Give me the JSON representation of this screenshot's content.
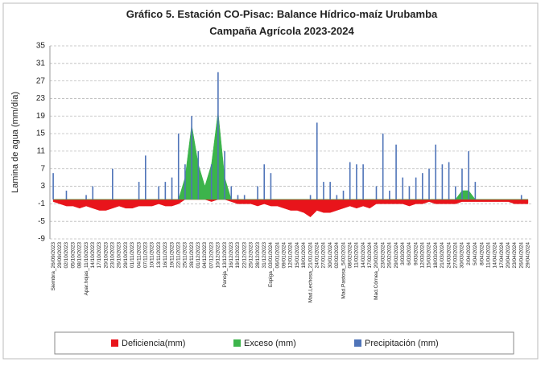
{
  "chart_data": {
    "type": "combo",
    "title": "Gráfico 5. Estación CO-Pisac: Balance Hídrico-maíz Urubamba",
    "subtitle": "Campaña Agrícola 2023-2024",
    "y_label": "Lamina de agua (mm/día)",
    "ylim": [
      -9,
      35
    ],
    "yticks": [
      -9,
      -5,
      -1,
      3,
      7,
      11,
      15,
      19,
      23,
      27,
      31,
      35
    ],
    "grid": true,
    "categories": [
      "Siembra_26/09/2023",
      "29/09/2023",
      "02/10/2023",
      "05/10/2023",
      "08/10/2023",
      "Apar.hojas_11/10/2023",
      "14/10/2023",
      "17/10/2023",
      "20/10/2023",
      "23/10/2023",
      "26/10/2023",
      "29/10/2023",
      "01/11/2023",
      "04/11/2023",
      "07/11/2023",
      "10/11/2023",
      "13/11/2023",
      "16/11/2023",
      "19/11/2023",
      "22/11/2023",
      "25/11/2023",
      "28/11/2023",
      "01/12/2023",
      "04/12/2023",
      "07/12/2023",
      "10/12/2023",
      "Panoja_13/12/2023",
      "16/12/2023",
      "19/12/2023",
      "22/12/2023",
      "25/12/2023",
      "28/12/2023",
      "31/12/2023",
      "Espiga_03/01/2024",
      "06/01/2024",
      "09/01/2024",
      "12/01/2024",
      "15/01/2024",
      "18/01/2024",
      "Mad.Lechosa_21/01/2024",
      "24/01/2024",
      "27/01/2024",
      "30/01/2024",
      "02/02/2024",
      "Mad.Pastosa_5/02/2024",
      "08/02/2024",
      "11/02/2024",
      "14/02/2024",
      "17/02/2024",
      "Mad.Córnea_20/02/2024",
      "23/02/2024",
      "26/02/2024",
      "29/02/2024",
      "3/03/2024",
      "6/03/2024",
      "9/03/2024",
      "12/03/2024",
      "15/03/2024",
      "18/03/2024",
      "21/03/2024",
      "24/03/2024",
      "27/03/2024",
      "30/03/2024",
      "2/04/2024",
      "5/04/2024",
      "8/04/2024",
      "11/04/2024",
      "14/04/2024",
      "17/04/2024",
      "20/04/2024",
      "23/04/2024",
      "26/04/2024",
      "29/04/2024"
    ],
    "series": [
      {
        "name": "Deficiencia(mm)",
        "color": "#e8141b",
        "type": "area",
        "values": [
          -0.5,
          -1,
          -1.5,
          -1.5,
          -2,
          -1.5,
          -2,
          -2.5,
          -2.5,
          -2,
          -1.5,
          -2,
          -2,
          -1.5,
          -1.5,
          -1.5,
          -1,
          -1.5,
          -1.5,
          -1,
          0,
          0,
          0,
          0,
          -0.5,
          0,
          0,
          -0.5,
          -1,
          -1,
          -1,
          -1.5,
          -1,
          -1.5,
          -1.5,
          -2,
          -2.5,
          -2.5,
          -3,
          -4,
          -2.5,
          -3,
          -3,
          -2.5,
          -2,
          -1.5,
          -2,
          -1.5,
          -2,
          -1,
          -1,
          -1,
          -1,
          -1,
          -1.5,
          -1,
          -1,
          -0.5,
          -1,
          -1,
          -1,
          -1,
          -0.5,
          -0.5,
          -0.5,
          -0.5,
          -0.5,
          -0.5,
          -0.5,
          -0.5,
          -1,
          -1,
          -1
        ]
      },
      {
        "name": "Exceso (mm)",
        "color": "#3cb44b",
        "type": "area",
        "values": [
          0,
          0,
          0,
          0,
          0,
          0,
          0,
          0,
          0,
          0,
          0,
          0,
          0,
          0,
          0,
          0,
          0,
          0,
          0,
          0,
          5,
          17,
          8,
          3,
          8,
          20,
          5,
          0,
          0,
          0,
          0,
          0,
          0,
          0,
          0,
          0,
          0,
          0,
          0,
          0,
          0,
          0,
          0,
          0,
          0,
          0,
          0,
          0,
          0,
          0,
          0,
          0,
          0,
          0,
          0,
          0,
          0,
          0,
          0,
          0,
          0,
          0,
          2,
          2,
          0,
          0,
          0,
          0,
          0,
          0,
          0,
          0,
          0
        ]
      },
      {
        "name": "Precipitación (mm)",
        "color": "#4f74b8",
        "type": "bar",
        "values": [
          6,
          0,
          2,
          0,
          0,
          1,
          3,
          0,
          0,
          7,
          0,
          0,
          0,
          4,
          10,
          0,
          3,
          4,
          5,
          15,
          8,
          19,
          11,
          0,
          8,
          29,
          11,
          3,
          1,
          1,
          0,
          3,
          8,
          6,
          0,
          0,
          0,
          0,
          0,
          1,
          17.5,
          4,
          4,
          1,
          2,
          8.5,
          8,
          8,
          0,
          3,
          15,
          2,
          12.5,
          5,
          3,
          5,
          6,
          7,
          12.5,
          8,
          8.5,
          3,
          7,
          11,
          4,
          0,
          0,
          0,
          0,
          0,
          0,
          1,
          0
        ]
      }
    ]
  }
}
